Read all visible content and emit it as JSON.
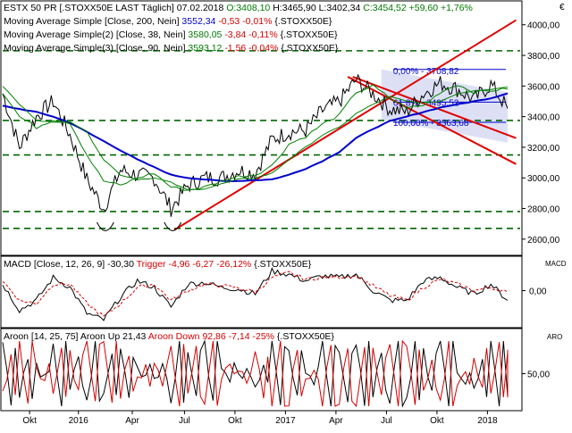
{
  "header": {
    "line1_title": "ESTX 50 PR [.STOXX50E LAST Täglich] 07.02.2018",
    "line1_o": "O:3408,10",
    "line1_h": "H:3465,90",
    "line1_l": "L:3402,34",
    "line1_c": "C:3454,52",
    "line1_chg": "+59,60",
    "line1_pct": "+1,76%",
    "ma1_name": "Moving Average Simple [Close, 200, Nein]",
    "ma1_val": "3552,34",
    "ma1_chg": "-0,53",
    "ma1_pct": "-0,01%",
    "ma1_sym": "{.STOXX50E}",
    "ma2_name": "Moving Average Simple(2) [Close, 38, Nein]",
    "ma2_val": "3580,05",
    "ma2_chg": "-3,84",
    "ma2_pct": "-0,11%",
    "ma2_sym": "{.STOXX50E}",
    "ma3_name": "Moving Average Simple(3) [Close, 90, Nein]",
    "ma3_val": "3593,12",
    "ma3_chg": "-1,56",
    "ma3_pct": "-0,04%",
    "ma3_sym": "{.STOXX50E}"
  },
  "macd_panel": {
    "name": "MACD [Close, 12, 26, 9]",
    "value": "-30,30",
    "trigger_label": "Trigger",
    "trigger_vals": "-4,96 -6,27 -26,12%",
    "sym": "{.STOXX50E}",
    "axis_label": "MACD",
    "tick": "0,00"
  },
  "aroon_panel": {
    "name": "Aroon [14, 25, 75]",
    "up_label": "Aroon Up",
    "up_val": "21,43",
    "down_label": "Aroon Down",
    "down_val": "92,86 -7,14 -25%",
    "sym": "{.STOXX50E}",
    "axis_label": "ARO",
    "tick": "50,00"
  },
  "fib": {
    "label_0": "0,00% - 3708,82",
    "label_61": "61,8% - 3495,52",
    "label_100": "100,00% - 3363,68"
  },
  "time_axis": [
    "Okt",
    "2016",
    "Apr",
    "Jul",
    "Okt",
    "2017",
    "Apr",
    "Jul",
    "Okt",
    "2018"
  ],
  "chart_data": [
    {
      "type": "line",
      "title": "ESTX 50 PR [.STOXX50E LAST Täglich] 07.02.2018",
      "x": [
        "2015-08",
        "2015-09",
        "2015-10",
        "2015-11",
        "2015-12",
        "2016-01",
        "2016-02",
        "2016-03",
        "2016-04",
        "2016-05",
        "2016-06",
        "2016-07",
        "2016-08",
        "2016-09",
        "2016-10",
        "2016-11",
        "2016-12",
        "2017-01",
        "2017-02",
        "2017-03",
        "2017-04",
        "2017-05",
        "2017-06",
        "2017-07",
        "2017-08",
        "2017-09",
        "2017-10",
        "2017-11",
        "2017-12",
        "2018-01",
        "2018-02"
      ],
      "series": [
        {
          "name": "ESTX 50 PR",
          "values": [
            3550,
            3200,
            3400,
            3500,
            3280,
            2990,
            2800,
            3050,
            3020,
            3000,
            2800,
            2950,
            3000,
            3000,
            3050,
            3030,
            3250,
            3300,
            3310,
            3440,
            3500,
            3640,
            3550,
            3450,
            3430,
            3550,
            3620,
            3580,
            3510,
            3610,
            3454
          ]
        },
        {
          "name": "Moving Average Simple [Close, 200, Nein]",
          "values": [
            3470,
            3450,
            3430,
            3400,
            3360,
            3300,
            3240,
            3180,
            3120,
            3070,
            3020,
            3000,
            2990,
            2980,
            2980,
            2985,
            2990,
            3020,
            3060,
            3110,
            3170,
            3260,
            3320,
            3370,
            3400,
            3430,
            3460,
            3480,
            3500,
            3520,
            3552
          ]
        },
        {
          "name": "Moving Average Simple(2) [Close, 38, Nein]",
          "values": [
            3560,
            3400,
            3330,
            3380,
            3360,
            3150,
            2980,
            2950,
            3000,
            3030,
            2940,
            2920,
            2940,
            2980,
            3010,
            3020,
            3080,
            3220,
            3270,
            3350,
            3410,
            3560,
            3600,
            3520,
            3460,
            3470,
            3560,
            3610,
            3560,
            3570,
            3580
          ]
        },
        {
          "name": "Moving Average Simple(3) [Close, 90, Nein]",
          "values": [
            3600,
            3480,
            3380,
            3360,
            3370,
            3300,
            3120,
            3020,
            2990,
            3000,
            2970,
            2920,
            2930,
            2960,
            2990,
            3000,
            3030,
            3120,
            3200,
            3280,
            3330,
            3420,
            3480,
            3530,
            3500,
            3490,
            3500,
            3550,
            3570,
            3580,
            3593
          ]
        }
      ],
      "ylim": [
        2500,
        4150
      ],
      "yticks": [
        2600,
        2800,
        3000,
        3200,
        3400,
        3600,
        3800,
        4000
      ],
      "ytick_labels": [
        "2600,00",
        "2800,00",
        "3000,00",
        "3200,00",
        "3400,00",
        "3600,00",
        "3800,00",
        "4000,00"
      ],
      "hlines": [
        3830,
        3375,
        3150,
        2780,
        2670
      ],
      "grid": false,
      "colors": {
        "price": "#000000",
        "ma200": "#0000cc",
        "ma38": "#008000",
        "ma90": "#008000",
        "trend": "#e00000",
        "levels": "#006600",
        "fib": "#0000cc",
        "fib_fill": "#dde0f5"
      }
    },
    {
      "type": "line",
      "title": "MACD [Close, 12, 26, 9]",
      "series": [
        {
          "name": "MACD",
          "values": [
            20,
            -60,
            -30,
            40,
            10,
            -70,
            -90,
            -20,
            30,
            10,
            -50,
            20,
            25,
            10,
            5,
            -10,
            60,
            50,
            30,
            45,
            40,
            50,
            0,
            -30,
            -30,
            30,
            40,
            10,
            -10,
            20,
            -30
          ]
        },
        {
          "name": "Trigger",
          "values": [
            30,
            -30,
            -40,
            20,
            20,
            -40,
            -80,
            -40,
            10,
            20,
            -30,
            0,
            20,
            15,
            8,
            -5,
            40,
            55,
            35,
            40,
            42,
            45,
            15,
            -15,
            -30,
            10,
            35,
            20,
            0,
            10,
            -5
          ]
        }
      ],
      "yticks": [
        0
      ],
      "ytick_labels": [
        "0,00"
      ]
    },
    {
      "type": "line",
      "title": "Aroon [14, 25, 75]",
      "series": [
        {
          "name": "Aroon Up",
          "values": [
            90,
            20,
            60,
            100,
            30,
            0,
            10,
            80,
            60,
            40,
            0,
            90,
            100,
            60,
            50,
            30,
            100,
            90,
            60,
            100,
            90,
            100,
            20,
            0,
            10,
            80,
            100,
            60,
            20,
            100,
            21.43
          ]
        },
        {
          "name": "Aroon Down",
          "values": [
            20,
            100,
            60,
            10,
            80,
            100,
            100,
            20,
            40,
            60,
            100,
            10,
            0,
            40,
            60,
            80,
            0,
            10,
            40,
            0,
            10,
            0,
            80,
            100,
            90,
            20,
            0,
            40,
            80,
            10,
            92.86
          ]
        }
      ],
      "yticks": [
        50
      ],
      "ytick_labels": [
        "50,00"
      ],
      "ylim": [
        0,
        100
      ]
    }
  ]
}
